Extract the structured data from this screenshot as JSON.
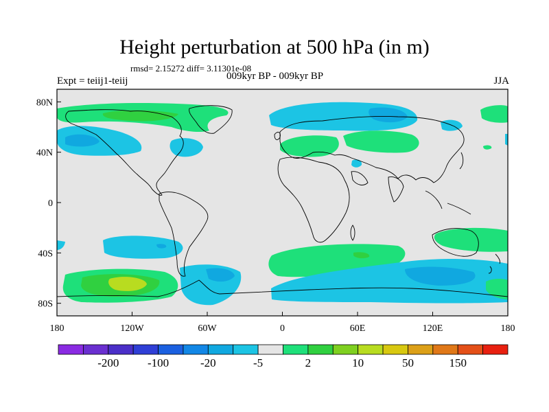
{
  "title": "Height perturbation at 500 hPa (in m)",
  "stats_text": "rmsd= 2.15272 diff= 3.11301e-08",
  "left_label": "Expt = teiij1-teiij",
  "center_label": "009kyr BP - 009kyr BP",
  "right_label": "JJA",
  "map": {
    "ocean_color": "#e5e5e5",
    "lon_labels": [
      "180",
      "120W",
      "60W",
      "0",
      "60E",
      "120E",
      "180"
    ],
    "lat_labels": [
      "80N",
      "40N",
      "0",
      "40S",
      "80S"
    ]
  },
  "colorbar": {
    "colors": [
      "#8a2be2",
      "#6a2fd0",
      "#4b2fc8",
      "#2f3fd6",
      "#1b60e0",
      "#1287e6",
      "#10a8e0",
      "#1cc4e4",
      "#e5e5e5",
      "#1ee07a",
      "#30d040",
      "#7fd020",
      "#b8dc20",
      "#d8c810",
      "#dca018",
      "#e07818",
      "#e45018",
      "#e82010"
    ],
    "tick_labels": [
      "-200",
      "-100",
      "-20",
      "-5",
      "2",
      "10",
      "50",
      "150"
    ]
  }
}
